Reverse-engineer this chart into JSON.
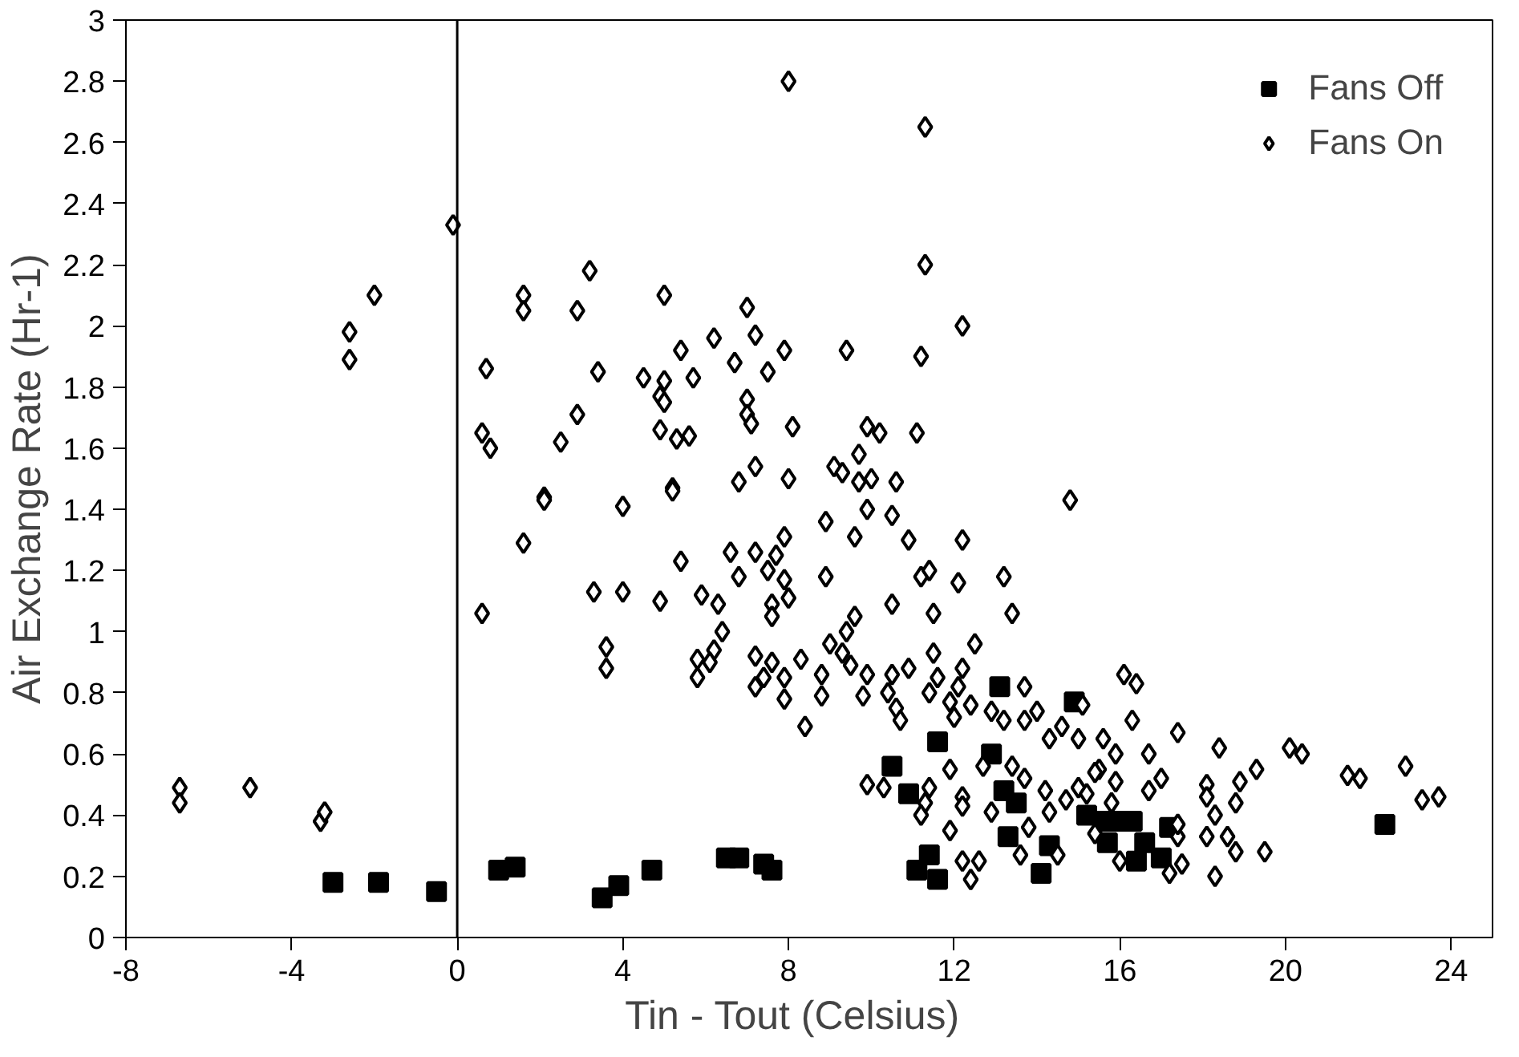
{
  "chart_data": {
    "type": "scatter",
    "xlabel": "Tin - Tout    (Celsius)",
    "ylabel": "Air Exchange Rate (Hr-1)",
    "xlim": [
      -8,
      25
    ],
    "ylim": [
      0,
      3
    ],
    "xticks": [
      -8,
      -4,
      0,
      4,
      8,
      12,
      16,
      20,
      24
    ],
    "yticks": [
      0,
      0.2,
      0.4,
      0.6,
      0.8,
      1,
      1.2,
      1.4,
      1.6,
      1.8,
      2,
      2.2,
      2.4,
      2.6,
      2.8,
      3
    ],
    "grid": false,
    "legend": "top right",
    "ref_lines": [
      {
        "axis": "x",
        "value": 0,
        "color": "#000000"
      }
    ],
    "series": [
      {
        "name": "Fans Off",
        "color": "#000000",
        "marker": "square",
        "x": [
          -3.0,
          -1.9,
          -0.5,
          1.0,
          1.4,
          3.5,
          3.9,
          4.7,
          6.5,
          6.8,
          7.4,
          7.6,
          10.5,
          10.9,
          11.4,
          11.1,
          11.6,
          13.1,
          11.6,
          12.9,
          13.2,
          13.5,
          13.3,
          14.3,
          14.1,
          14.9,
          15.2,
          15.6,
          16.0,
          16.3,
          15.7,
          16.2,
          16.4,
          16.6,
          17.0,
          17.2,
          22.4
        ],
        "values": [
          0.18,
          0.18,
          0.15,
          0.22,
          0.23,
          0.13,
          0.17,
          0.22,
          0.26,
          0.26,
          0.24,
          0.22,
          0.56,
          0.47,
          0.27,
          0.22,
          0.19,
          0.82,
          0.64,
          0.6,
          0.48,
          0.44,
          0.33,
          0.3,
          0.21,
          0.77,
          0.4,
          0.38,
          0.38,
          0.38,
          0.31,
          null,
          0.25,
          0.31,
          0.26,
          0.36,
          0.37
        ]
      },
      {
        "name": "Fans On",
        "color": "#000000",
        "marker": "diamond",
        "x": [
          -6.7,
          -6.7,
          -5.0,
          -3.3,
          -3.2,
          -2.0,
          -2.6,
          -2.6,
          -0.1,
          3.2,
          1.6,
          1.6,
          2.9,
          5.0,
          7.0,
          8.0,
          0.7,
          3.4,
          5.4,
          6.2,
          7.2,
          7.9,
          6.7,
          7.5,
          4.5,
          5.0,
          5.7,
          4.9,
          5.0,
          7.0,
          7.0,
          7.1,
          2.9,
          0.6,
          0.8,
          2.5,
          4.9,
          5.3,
          5.6,
          8.1,
          7.2,
          6.8,
          8.0,
          5.2,
          2.1,
          11.3,
          11.3,
          12.2,
          9.4,
          11.2,
          9.9,
          10.2,
          11.1,
          9.7,
          9.1,
          9.3,
          9.7,
          10.0,
          10.6,
          14.8,
          0.6,
          1.6,
          2.1,
          4.0,
          5.2,
          3.3,
          4.0,
          3.6,
          3.6,
          4.9,
          5.4,
          5.9,
          6.3,
          6.6,
          6.8,
          7.2,
          7.5,
          7.7,
          7.9,
          7.9,
          7.6,
          7.6,
          8.0,
          6.4,
          6.2,
          5.8,
          6.1,
          5.8,
          7.2,
          7.6,
          7.4,
          7.2,
          7.9,
          7.9,
          8.3,
          8.4,
          8.9,
          9.9,
          10.5,
          9.6,
          10.9,
          12.2,
          8.9,
          11.2,
          11.4,
          12.1,
          13.2,
          10.5,
          11.5,
          13.4,
          12.5,
          9.6,
          9.4,
          9.0,
          9.3,
          9.5,
          8.8,
          9.9,
          10.5,
          10.9,
          8.8,
          9.8,
          11.5,
          11.6,
          12.2,
          11.4,
          12.1,
          13.7,
          10.4,
          10.6,
          10.7,
          11.9,
          16.1,
          16.4,
          15.1,
          16.3,
          12.0,
          12.4,
          12.9,
          13.2,
          14.0,
          13.7,
          14.6,
          14.3,
          15.0,
          17.4,
          18.4,
          20.1,
          20.4,
          22.9,
          21.5,
          21.8,
          23.3,
          23.7,
          19.3,
          18.9,
          18.1,
          18.1,
          18.8,
          18.3,
          18.1,
          18.6,
          18.8,
          19.5,
          18.3,
          16.7,
          17.0,
          16.7,
          15.9,
          15.8,
          15.6,
          15.9,
          15.5,
          15.0,
          14.7,
          14.3,
          13.8,
          14.2,
          13.7,
          13.4,
          12.7,
          11.9,
          11.4,
          11.3,
          11.2,
          12.2,
          12.2,
          12.9,
          11.9,
          9.9,
          10.3,
          12.2,
          12.6,
          12.4,
          13.6,
          14.5,
          16.0,
          17.2,
          17.5,
          17.4,
          17.4,
          15.4,
          15.2,
          15.4
        ],
        "values": [
          0.49,
          0.44,
          0.49,
          0.38,
          0.41,
          2.1,
          1.98,
          1.89,
          2.33,
          2.18,
          2.1,
          2.05,
          2.05,
          2.1,
          2.06,
          2.8,
          1.86,
          1.85,
          1.92,
          1.96,
          1.97,
          1.92,
          1.88,
          1.85,
          1.83,
          1.82,
          1.83,
          1.77,
          1.75,
          1.76,
          1.71,
          1.68,
          1.71,
          1.65,
          1.6,
          1.62,
          1.66,
          1.63,
          1.64,
          1.67,
          1.54,
          1.49,
          1.5,
          1.47,
          1.44,
          2.65,
          2.2,
          2.0,
          1.92,
          1.9,
          1.67,
          1.65,
          1.65,
          1.58,
          1.54,
          1.52,
          1.49,
          1.5,
          1.49,
          1.43,
          1.06,
          1.29,
          1.43,
          1.41,
          1.46,
          1.13,
          1.13,
          0.95,
          0.88,
          1.1,
          1.23,
          1.12,
          1.09,
          1.26,
          1.18,
          1.26,
          1.2,
          1.25,
          1.31,
          1.17,
          1.09,
          1.05,
          1.11,
          1.0,
          0.94,
          0.91,
          0.9,
          0.85,
          0.92,
          0.9,
          0.85,
          0.82,
          0.85,
          0.78,
          0.91,
          0.69,
          1.36,
          1.4,
          1.38,
          1.31,
          1.3,
          1.3,
          1.18,
          1.18,
          1.2,
          1.16,
          1.18,
          1.09,
          1.06,
          1.06,
          0.96,
          1.05,
          1.0,
          0.96,
          0.93,
          0.89,
          0.86,
          0.86,
          0.86,
          0.88,
          0.79,
          0.79,
          0.93,
          0.85,
          0.88,
          0.8,
          0.82,
          0.82,
          0.8,
          0.75,
          0.71,
          0.77,
          0.86,
          0.83,
          0.76,
          0.71,
          0.72,
          0.76,
          0.74,
          0.71,
          0.74,
          0.71,
          0.69,
          0.65,
          0.65,
          0.67,
          0.62,
          0.62,
          0.6,
          0.56,
          0.53,
          0.52,
          0.45,
          0.46,
          0.55,
          0.51,
          0.5,
          0.46,
          0.44,
          0.4,
          0.33,
          0.33,
          0.28,
          0.28,
          0.2,
          0.6,
          0.52,
          0.48,
          0.51,
          0.44,
          0.65,
          0.6,
          0.55,
          0.49,
          0.45,
          0.41,
          0.36,
          0.48,
          0.52,
          0.56,
          0.56,
          0.55,
          0.49,
          0.44,
          0.4,
          0.46,
          0.43,
          0.41,
          0.35,
          0.5,
          0.49,
          0.25,
          0.25,
          0.19,
          0.27,
          0.27,
          0.25,
          0.21,
          0.24,
          0.33,
          0.37,
          0.34,
          0.47,
          0.54
        ]
      }
    ]
  }
}
